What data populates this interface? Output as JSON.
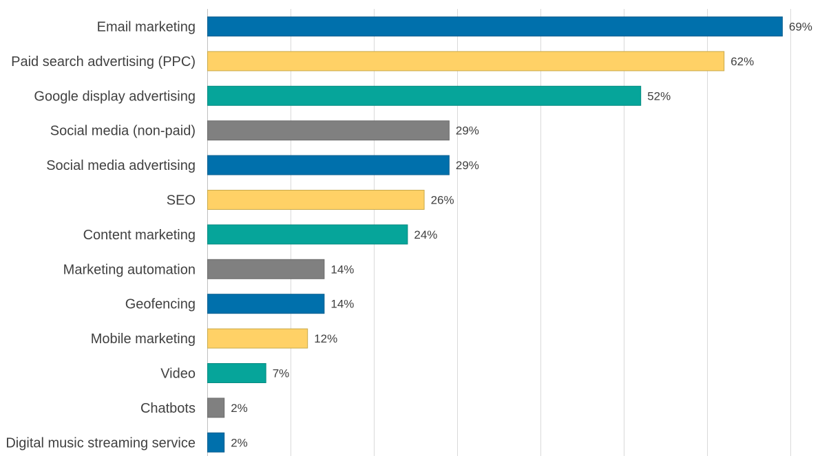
{
  "chart_data": {
    "type": "bar",
    "orientation": "horizontal",
    "title": "",
    "xlabel": "",
    "ylabel": "",
    "xlim": [
      0,
      70
    ],
    "grid": true,
    "legend": "none",
    "value_suffix": "%",
    "categories": [
      "Email marketing",
      "Paid search advertising (PPC)",
      "Google display advertising",
      "Social media (non-paid)",
      "Social media advertising",
      "SEO",
      "Content marketing",
      "Marketing automation",
      "Geofencing",
      "Mobile marketing",
      "Video",
      "Chatbots",
      "Digital music streaming service"
    ],
    "values": [
      69,
      62,
      52,
      29,
      29,
      26,
      24,
      14,
      14,
      12,
      7,
      2,
      2
    ],
    "value_labels": [
      "69%",
      "62%",
      "52%",
      "29%",
      "29%",
      "26%",
      "24%",
      "14%",
      "14%",
      "12%",
      "7%",
      "2%",
      "2%"
    ],
    "bar_colors": [
      "#0070ac",
      "#ffd166",
      "#06a59a",
      "#808080",
      "#0070ac",
      "#ffd166",
      "#06a59a",
      "#808080",
      "#0070ac",
      "#ffd166",
      "#06a59a",
      "#808080",
      "#0070ac"
    ],
    "bar_border_colors": [
      "#0a5f8f",
      "#c8a94a",
      "#068a80",
      "#6b6b6b",
      "#0a5f8f",
      "#c8a94a",
      "#068a80",
      "#6b6b6b",
      "#0a5f8f",
      "#c8a94a",
      "#068a80",
      "#6b6b6b",
      "#0a5f8f"
    ],
    "gridline_values": [
      0,
      10,
      20,
      30,
      40,
      50,
      60,
      70
    ]
  }
}
